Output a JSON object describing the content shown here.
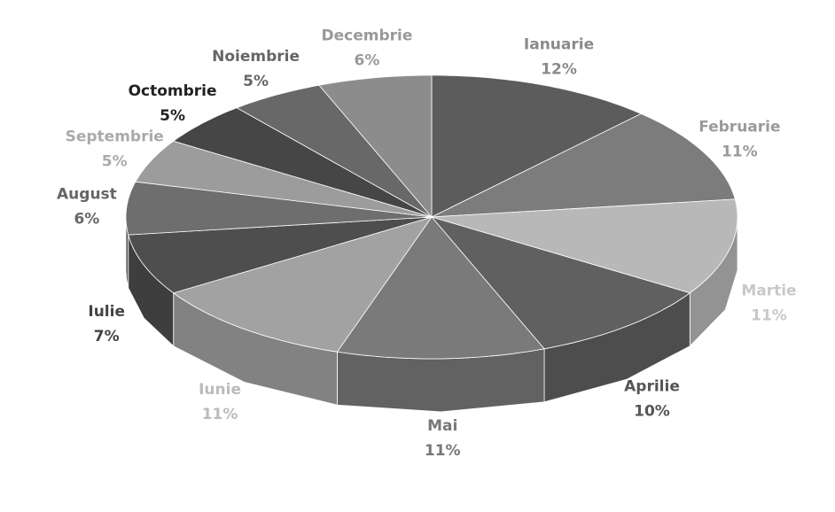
{
  "chart_data": {
    "type": "pie3d",
    "categories": [
      "Ianuarie",
      "Februarie",
      "Martie",
      "Aprilie",
      "Mai",
      "Iunie",
      "Iulie",
      "August",
      "Septembrie",
      "Octombrie",
      "Noiembrie",
      "Decembrie"
    ],
    "values": [
      12,
      11,
      11,
      10,
      11,
      11,
      7,
      6,
      5,
      5,
      5,
      6
    ],
    "value_labels": [
      "12%",
      "11%",
      "11%",
      "10%",
      "11%",
      "11%",
      "7%",
      "6%",
      "5%",
      "5%",
      "5%",
      "6%"
    ],
    "colors": [
      "#5c5c5c",
      "#7c7c7c",
      "#b8b8b8",
      "#606060",
      "#7a7a7a",
      "#a2a2a2",
      "#4e4e4e",
      "#6e6e6e",
      "#9c9c9c",
      "#464646",
      "#686868",
      "#8c8c8c"
    ],
    "label_colors": [
      "#8a8a8a",
      "#9a9a9a",
      "#c8c8c8",
      "#555555",
      "#777777",
      "#bbbbbb",
      "#444444",
      "#666666",
      "#aaaaaa",
      "#222222",
      "#666666",
      "#999999"
    ]
  }
}
